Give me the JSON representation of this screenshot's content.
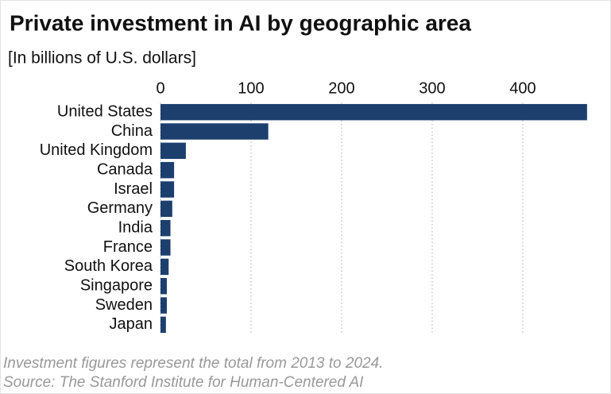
{
  "chart_data": {
    "type": "bar",
    "orientation": "horizontal",
    "title": "Private investment in AI by geographic area",
    "subtitle": "[In billions of U.S. dollars]",
    "categories": [
      "United States",
      "China",
      "United Kingdom",
      "Canada",
      "Israel",
      "Germany",
      "India",
      "France",
      "South Korea",
      "Singapore",
      "Sweden",
      "Japan"
    ],
    "values": [
      471,
      119,
      28,
      15,
      15,
      13,
      11,
      11,
      9,
      7,
      7,
      6
    ],
    "color": "#1c3f6e",
    "xlim": [
      0,
      472
    ],
    "xticks": [
      0,
      100,
      200,
      300,
      400
    ],
    "grid": true,
    "notes": [
      "Investment figures represent the total from 2013 to 2024.",
      "Source: The Stanford Institute for Human-Centered AI"
    ]
  }
}
